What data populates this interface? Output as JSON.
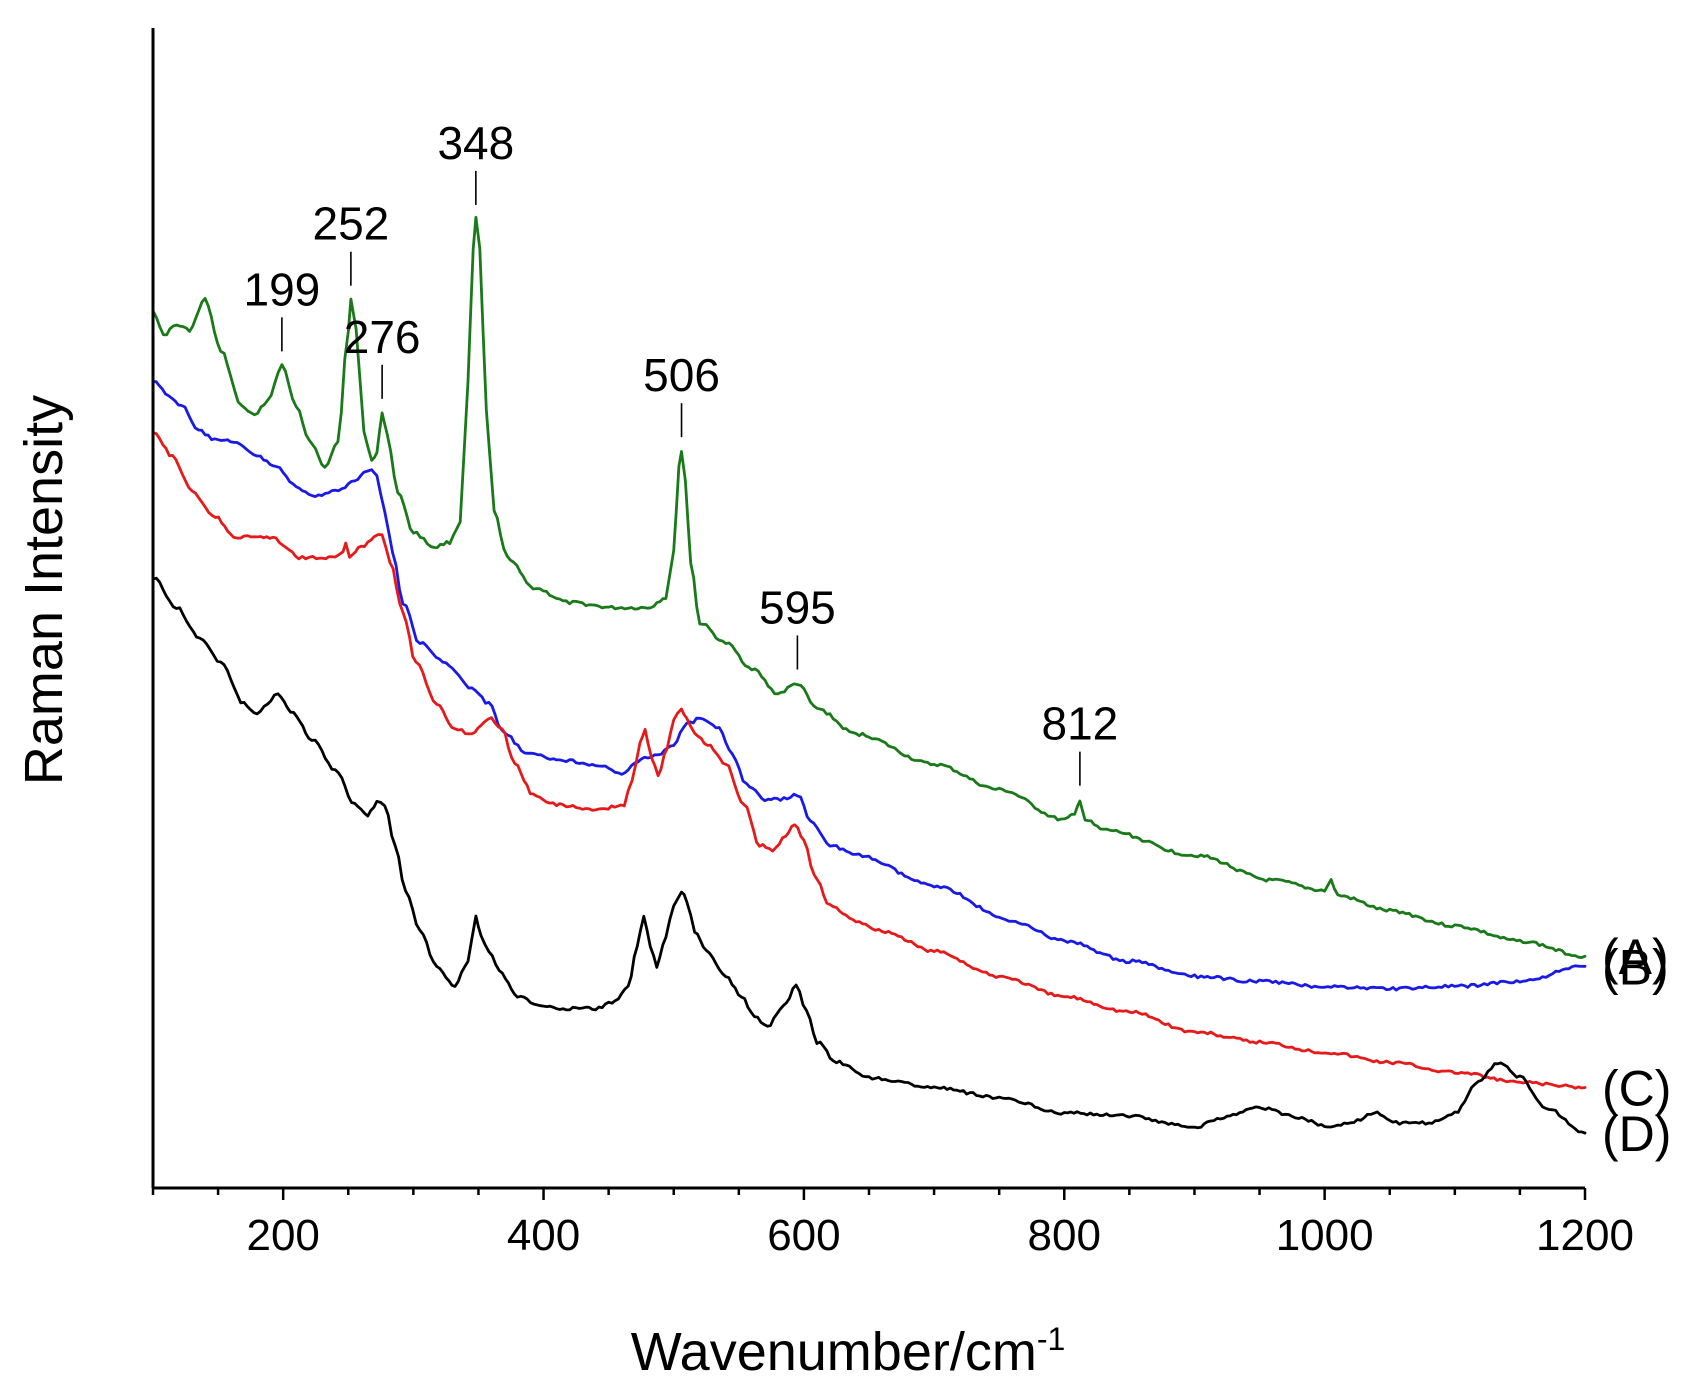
{
  "chart_data": {
    "type": "line",
    "title": "",
    "xlabel": "Wavenumber/cm",
    "xlabel_superscript": "-1",
    "ylabel": "Raman Intensity",
    "xlim": [
      100,
      1200
    ],
    "ylim": [
      0,
      100
    ],
    "x_ticks": [
      200,
      400,
      600,
      800,
      1000,
      1200
    ],
    "y_ticks": [],
    "grid": false,
    "legend": "labels at right end of each series",
    "series": [
      {
        "name": "(A)",
        "color": "#1a7a1a",
        "points": [
          [
            100,
            82
          ],
          [
            108,
            79.5
          ],
          [
            118,
            80.5
          ],
          [
            128,
            80
          ],
          [
            140,
            83
          ],
          [
            152,
            78
          ],
          [
            168,
            72.5
          ],
          [
            178,
            71.5
          ],
          [
            188,
            73
          ],
          [
            199,
            76.5
          ],
          [
            210,
            72.5
          ],
          [
            220,
            69
          ],
          [
            232,
            66.5
          ],
          [
            242,
            69
          ],
          [
            250,
            80
          ],
          [
            252,
            83
          ],
          [
            256,
            80
          ],
          [
            262,
            70
          ],
          [
            268,
            67
          ],
          [
            272,
            68
          ],
          [
            276,
            71.8
          ],
          [
            280,
            69.5
          ],
          [
            288,
            64
          ],
          [
            300,
            60
          ],
          [
            316,
            58.5
          ],
          [
            328,
            59
          ],
          [
            336,
            61
          ],
          [
            342,
            75
          ],
          [
            346,
            88
          ],
          [
            348,
            91
          ],
          [
            351,
            88
          ],
          [
            356,
            72
          ],
          [
            362,
            62
          ],
          [
            372,
            57.5
          ],
          [
            392,
            54.5
          ],
          [
            420,
            53
          ],
          [
            455,
            52.5
          ],
          [
            480,
            52.5
          ],
          [
            494,
            53.5
          ],
          [
            500,
            58
          ],
          [
            504,
            66.5
          ],
          [
            506,
            68
          ],
          [
            509,
            65
          ],
          [
            513,
            57
          ],
          [
            520,
            51
          ],
          [
            540,
            49
          ],
          [
            560,
            46.5
          ],
          [
            580,
            44
          ],
          [
            595,
            45
          ],
          [
            610,
            42.5
          ],
          [
            640,
            40
          ],
          [
            700,
            37
          ],
          [
            750,
            34.5
          ],
          [
            800,
            31.5
          ],
          [
            808,
            32
          ],
          [
            812,
            33.5
          ],
          [
            816,
            31.5
          ],
          [
            830,
            30.5
          ],
          [
            900,
            28
          ],
          [
            960,
            25.5
          ],
          [
            1000,
            24.5
          ],
          [
            1005,
            25.5
          ],
          [
            1010,
            24
          ],
          [
            1050,
            22.5
          ],
          [
            1100,
            21
          ],
          [
            1150,
            19.5
          ],
          [
            1200,
            18
          ]
        ]
      },
      {
        "name": "(B)",
        "color": "#1a1ae6",
        "points": [
          [
            100,
            75
          ],
          [
            112,
            73.5
          ],
          [
            122,
            72.5
          ],
          [
            135,
            70
          ],
          [
            150,
            69
          ],
          [
            162,
            69
          ],
          [
            180,
            67.5
          ],
          [
            195,
            66.5
          ],
          [
            210,
            64.5
          ],
          [
            222,
            63.5
          ],
          [
            240,
            64
          ],
          [
            255,
            65
          ],
          [
            262,
            66
          ],
          [
            268,
            66.3
          ],
          [
            272,
            65.5
          ],
          [
            278,
            62
          ],
          [
            284,
            58
          ],
          [
            292,
            53
          ],
          [
            305,
            49
          ],
          [
            325,
            47
          ],
          [
            345,
            44.5
          ],
          [
            358,
            43
          ],
          [
            370,
            40
          ],
          [
            388,
            38
          ],
          [
            410,
            37.5
          ],
          [
            440,
            37
          ],
          [
            460,
            36
          ],
          [
            475,
            37.5
          ],
          [
            488,
            38
          ],
          [
            500,
            39
          ],
          [
            510,
            41
          ],
          [
            520,
            41.5
          ],
          [
            535,
            40.5
          ],
          [
            545,
            38
          ],
          [
            556,
            35
          ],
          [
            570,
            33.5
          ],
          [
            582,
            33.5
          ],
          [
            595,
            34
          ],
          [
            605,
            31.5
          ],
          [
            620,
            29
          ],
          [
            640,
            28
          ],
          [
            700,
            25
          ],
          [
            760,
            21.5
          ],
          [
            800,
            19.5
          ],
          [
            850,
            17.5
          ],
          [
            900,
            16
          ],
          [
            950,
            15.5
          ],
          [
            1000,
            15
          ],
          [
            1050,
            14.8
          ],
          [
            1100,
            15
          ],
          [
            1150,
            15.5
          ],
          [
            1200,
            17
          ]
        ]
      },
      {
        "name": "(C)",
        "color": "#e61a1a",
        "points": [
          [
            100,
            70
          ],
          [
            115,
            67.5
          ],
          [
            130,
            64
          ],
          [
            148,
            61.5
          ],
          [
            162,
            59.5
          ],
          [
            178,
            59.5
          ],
          [
            192,
            59.5
          ],
          [
            202,
            58.5
          ],
          [
            212,
            57.5
          ],
          [
            228,
            57.5
          ],
          [
            240,
            57.5
          ],
          [
            246,
            58
          ],
          [
            248,
            59
          ],
          [
            251,
            57.5
          ],
          [
            260,
            58.5
          ],
          [
            270,
            59.5
          ],
          [
            276,
            59.8
          ],
          [
            282,
            57
          ],
          [
            292,
            52
          ],
          [
            302,
            47
          ],
          [
            318,
            43
          ],
          [
            332,
            40.5
          ],
          [
            345,
            40
          ],
          [
            352,
            41
          ],
          [
            360,
            41.5
          ],
          [
            368,
            40.5
          ],
          [
            378,
            37
          ],
          [
            392,
            34
          ],
          [
            410,
            33
          ],
          [
            440,
            32.5
          ],
          [
            462,
            33
          ],
          [
            468,
            35.5
          ],
          [
            474,
            39
          ],
          [
            478,
            40.5
          ],
          [
            483,
            37.5
          ],
          [
            488,
            36
          ],
          [
            495,
            38.5
          ],
          [
            500,
            41.5
          ],
          [
            506,
            42.5
          ],
          [
            510,
            41.5
          ],
          [
            516,
            40
          ],
          [
            526,
            39
          ],
          [
            540,
            37
          ],
          [
            554,
            33
          ],
          [
            566,
            29
          ],
          [
            576,
            28.5
          ],
          [
            586,
            30
          ],
          [
            593,
            31
          ],
          [
            600,
            29.5
          ],
          [
            608,
            26
          ],
          [
            620,
            23
          ],
          [
            640,
            21.5
          ],
          [
            660,
            20.5
          ],
          [
            700,
            18.5
          ],
          [
            750,
            16
          ],
          [
            800,
            14
          ],
          [
            850,
            12.5
          ],
          [
            900,
            10.5
          ],
          [
            950,
            9.5
          ],
          [
            1000,
            8.5
          ],
          [
            1050,
            7.5
          ],
          [
            1100,
            6.5
          ],
          [
            1150,
            5.5
          ],
          [
            1200,
            5
          ]
        ]
      },
      {
        "name": "(D)",
        "color": "#000000",
        "points": [
          [
            100,
            55.5
          ],
          [
            118,
            52.5
          ],
          [
            136,
            49.5
          ],
          [
            152,
            47
          ],
          [
            170,
            43
          ],
          [
            180,
            42
          ],
          [
            188,
            43
          ],
          [
            196,
            44
          ],
          [
            208,
            42
          ],
          [
            222,
            39.5
          ],
          [
            240,
            36.5
          ],
          [
            255,
            33
          ],
          [
            265,
            32
          ],
          [
            272,
            33.2
          ],
          [
            278,
            33
          ],
          [
            286,
            29
          ],
          [
            294,
            24.5
          ],
          [
            305,
            20.5
          ],
          [
            318,
            17
          ],
          [
            332,
            15
          ],
          [
            342,
            17.5
          ],
          [
            348,
            22
          ],
          [
            352,
            20
          ],
          [
            358,
            18.5
          ],
          [
            366,
            16.5
          ],
          [
            380,
            14
          ],
          [
            400,
            13
          ],
          [
            420,
            12.8
          ],
          [
            440,
            12.8
          ],
          [
            455,
            13.5
          ],
          [
            465,
            15
          ],
          [
            472,
            19
          ],
          [
            477,
            22
          ],
          [
            482,
            19
          ],
          [
            487,
            17
          ],
          [
            494,
            20
          ],
          [
            500,
            23
          ],
          [
            506,
            24.5
          ],
          [
            510,
            23.5
          ],
          [
            516,
            20.5
          ],
          [
            525,
            18.5
          ],
          [
            540,
            16
          ],
          [
            552,
            14
          ],
          [
            562,
            12
          ],
          [
            572,
            11
          ],
          [
            584,
            13
          ],
          [
            594,
            15
          ],
          [
            602,
            12.5
          ],
          [
            610,
            9.5
          ],
          [
            625,
            7.5
          ],
          [
            650,
            6
          ],
          [
            700,
            5
          ],
          [
            750,
            4
          ],
          [
            800,
            2.5
          ],
          [
            850,
            2.2
          ],
          [
            880,
            1.5
          ],
          [
            900,
            1
          ],
          [
            920,
            2
          ],
          [
            952,
            3
          ],
          [
            980,
            2
          ],
          [
            1000,
            1.2
          ],
          [
            1020,
            1.5
          ],
          [
            1038,
            2.5
          ],
          [
            1055,
            1.5
          ],
          [
            1080,
            1.5
          ],
          [
            1100,
            2.5
          ],
          [
            1118,
            5.5
          ],
          [
            1133,
            7.5
          ],
          [
            1150,
            6
          ],
          [
            1170,
            3
          ],
          [
            1200,
            0.5
          ]
        ]
      }
    ],
    "annotations": [
      {
        "text": "199",
        "x": 199,
        "series": "(A)"
      },
      {
        "text": "252",
        "x": 252,
        "series": "(A)"
      },
      {
        "text": "276",
        "x": 276,
        "series": "(A)"
      },
      {
        "text": "348",
        "x": 348,
        "series": "(A)"
      },
      {
        "text": "506",
        "x": 506,
        "series": "(A)"
      },
      {
        "text": "595",
        "x": 595,
        "series": "(A)"
      },
      {
        "text": "812",
        "x": 812,
        "series": "(A)"
      }
    ]
  }
}
